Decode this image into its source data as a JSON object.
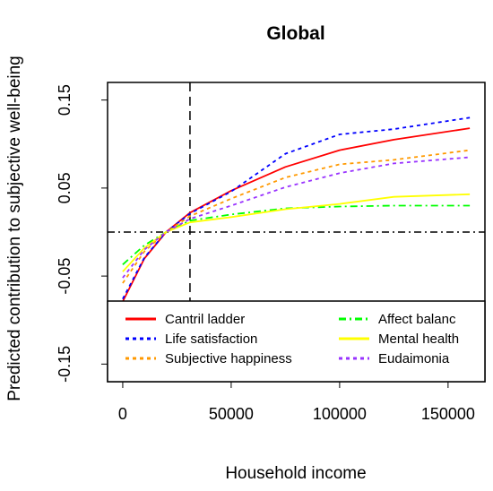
{
  "chart_data": {
    "type": "line",
    "title": "Global",
    "xlabel": "Household income",
    "ylabel": "Predicted contribution to subjective well-being",
    "xlim": [
      -7000,
      167000
    ],
    "ylim": [
      -0.17,
      0.17
    ],
    "x_ticks": [
      0,
      50000,
      100000,
      150000
    ],
    "x_tick_labels": [
      "0",
      "50000",
      "100000",
      "150000"
    ],
    "y_ticks": [
      -0.15,
      -0.05,
      0.05,
      0.15
    ],
    "y_tick_labels": [
      "-0.15",
      "-0.05",
      "0.05",
      "0.15"
    ],
    "reference_lines": [
      {
        "orientation": "vertical",
        "value": 31000,
        "style": "dashed"
      },
      {
        "orientation": "horizontal",
        "value": 0,
        "style": "dashdot"
      }
    ],
    "legend_position": "bottom",
    "grid": false,
    "x": [
      0,
      10000,
      20000,
      31000,
      50000,
      75000,
      100000,
      125000,
      160000
    ],
    "series": [
      {
        "name": "Cantril ladder",
        "color": "#ff0000",
        "dash": "solid",
        "values": [
          -0.079,
          -0.03,
          0.0,
          0.022,
          0.047,
          0.074,
          0.093,
          0.105,
          0.118
        ]
      },
      {
        "name": "Life satisfaction",
        "color": "#0000ff",
        "dash": "dotted",
        "values": [
          -0.076,
          -0.029,
          0.0,
          0.021,
          0.046,
          0.089,
          0.111,
          0.117,
          0.13
        ]
      },
      {
        "name": "Subjective happiness",
        "color": "#ff9900",
        "dash": "dotted",
        "values": [
          -0.058,
          -0.022,
          0.0,
          0.018,
          0.038,
          0.062,
          0.077,
          0.082,
          0.093
        ]
      },
      {
        "name": "Affect balance",
        "color": "#00ff00",
        "dash": "dashdot",
        "values": [
          -0.037,
          -0.015,
          0.0,
          0.013,
          0.02,
          0.027,
          0.029,
          0.03,
          0.03
        ]
      },
      {
        "name": "Mental health",
        "color": "#ffff00",
        "dash": "solid",
        "values": [
          -0.045,
          -0.018,
          0.0,
          0.011,
          0.017,
          0.026,
          0.032,
          0.04,
          0.043
        ]
      },
      {
        "name": "Eudaimonia",
        "color": "#9933ff",
        "dash": "dotted",
        "values": [
          -0.052,
          -0.02,
          0.0,
          0.015,
          0.03,
          0.051,
          0.067,
          0.078,
          0.085
        ]
      }
    ],
    "legend": {
      "col1": [
        "Cantril ladder",
        "Life satisfaction",
        "Subjective happiness"
      ],
      "col2": [
        "Affect balanc",
        "Mental health",
        "Eudaimonia"
      ]
    }
  }
}
